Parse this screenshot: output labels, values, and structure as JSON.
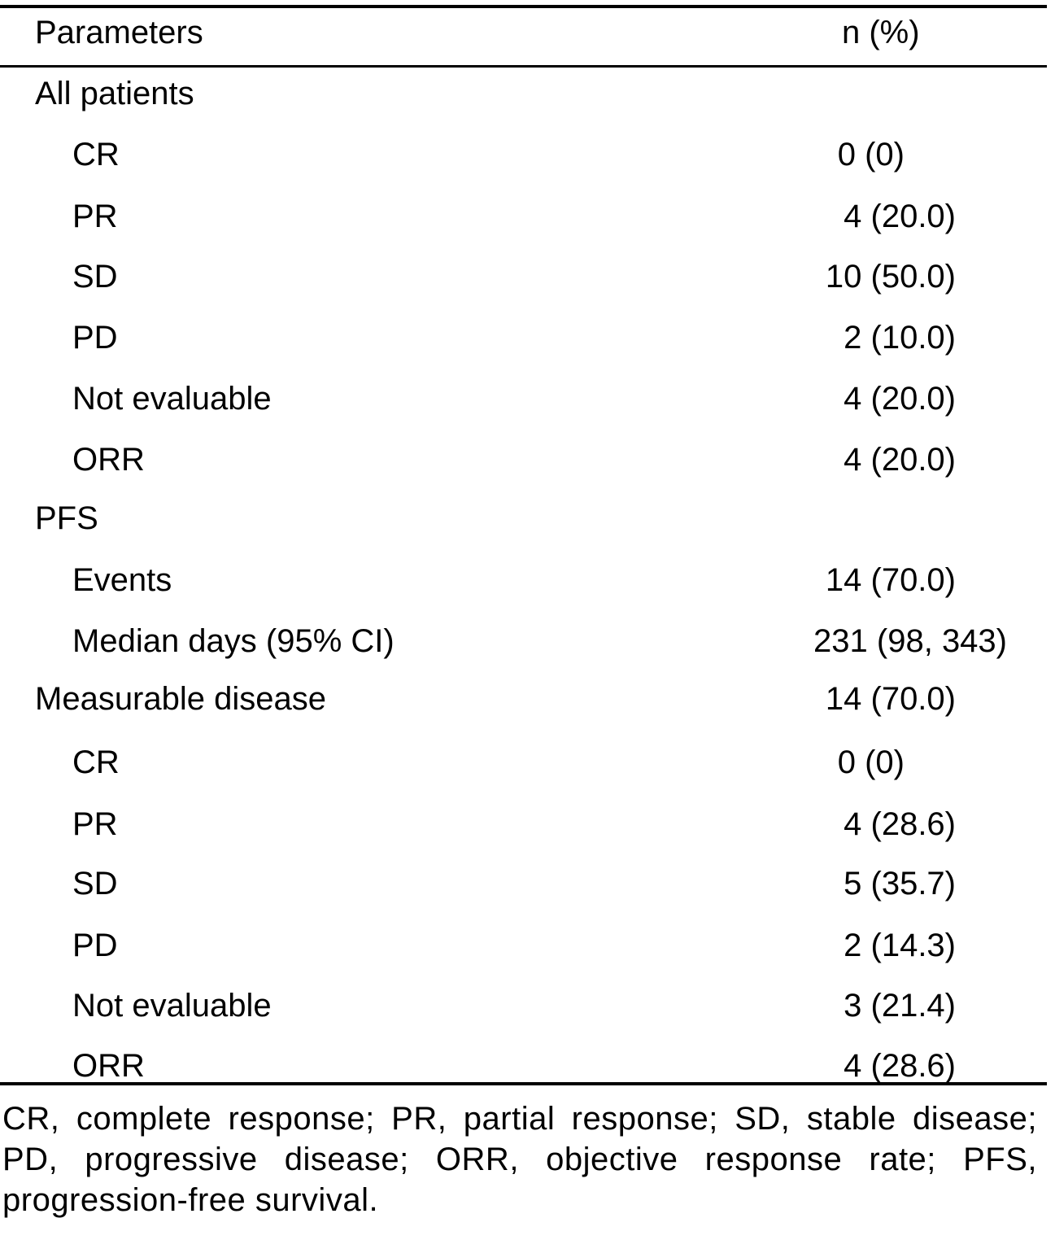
{
  "table": {
    "header": {
      "parameters": "Parameters",
      "value": "n (%)"
    },
    "rows": [
      {
        "label": "All patients",
        "value": ""
      },
      {
        "label": "CR",
        "value": "0 (0)"
      },
      {
        "label": "PR",
        "value": "4 (20.0)"
      },
      {
        "label": "SD",
        "value": "10 (50.0)"
      },
      {
        "label": "PD",
        "value": "2 (10.0)"
      },
      {
        "label": "Not evaluable",
        "value": "4 (20.0)"
      },
      {
        "label": "ORR",
        "value": "4 (20.0)"
      },
      {
        "label": "PFS",
        "value": ""
      },
      {
        "label": "Events",
        "value": "14 (70.0)"
      },
      {
        "label": "Median days (95% CI)",
        "value": "231 (98, 343)"
      },
      {
        "label": "Measurable disease",
        "value": "14 (70.0)"
      },
      {
        "label": "CR",
        "value": "0 (0)"
      },
      {
        "label": "PR",
        "value": "4 (28.6)"
      },
      {
        "label": "SD",
        "value": "5 (35.7)"
      },
      {
        "label": "PD",
        "value": "2 (14.3)"
      },
      {
        "label": "Not evaluable",
        "value": "3 (21.4)"
      },
      {
        "label": "ORR",
        "value": "4 (28.6)"
      }
    ]
  },
  "footnote": "CR, complete response; PR, partial response; SD, stable disease; PD, progressive disease; ORR, objective response rate; PFS, progression-free survival."
}
